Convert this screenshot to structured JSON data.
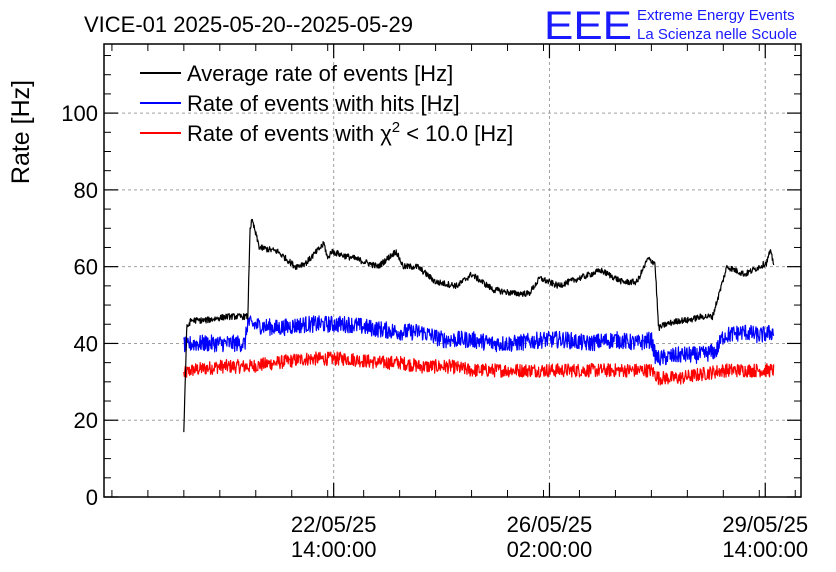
{
  "chart_data": {
    "type": "line",
    "title": "VICE-01 2025-05-20--2025-05-29",
    "ylabel": "Rate [Hz]",
    "xlabel": "",
    "ylim": [
      0,
      118
    ],
    "yticks": [
      0,
      20,
      40,
      60,
      80,
      100
    ],
    "xlim": [
      -1.11,
      8.58
    ],
    "xtick_positions_days": [
      2.083,
      5.083,
      8.083
    ],
    "xticks": [
      {
        "date": "22/05/25",
        "time": "14:00:00"
      },
      {
        "date": "26/05/25",
        "time": "02:00:00"
      },
      {
        "date": "29/05/25",
        "time": "14:00:00"
      }
    ],
    "x_unit": "days since 2025-05-20 12:00",
    "grid": true,
    "legend_position": "top-left",
    "series": [
      {
        "name": "Average rate of events [Hz]",
        "color": "#000000",
        "noise": 0.8,
        "x": [
          0.0,
          0.04,
          0.1,
          0.3,
          0.6,
          0.85,
          0.89,
          0.92,
          0.95,
          1.05,
          1.3,
          1.55,
          1.7,
          1.95,
          2.0,
          2.05,
          2.2,
          2.4,
          2.7,
          2.95,
          3.05,
          3.25,
          3.5,
          3.8,
          4.0,
          4.3,
          4.6,
          4.8,
          4.95,
          5.2,
          5.5,
          5.8,
          6.1,
          6.3,
          6.45,
          6.55,
          6.6,
          6.7,
          6.9,
          7.0,
          7.2,
          7.35,
          7.55,
          7.8,
          8.0,
          8.1,
          8.15,
          8.2
        ],
        "y": [
          17,
          44,
          46,
          46,
          47,
          47,
          47,
          70,
          72,
          65,
          64,
          60,
          61,
          66,
          62,
          64,
          63,
          62,
          60,
          64,
          60,
          60,
          56,
          55,
          58,
          54,
          53,
          53,
          57,
          55,
          57,
          59,
          56,
          56,
          62,
          61,
          44,
          45,
          46,
          46,
          47,
          47,
          60,
          58,
          60,
          61,
          64,
          61
        ]
      },
      {
        "name": "Rate of events with hits [Hz]",
        "color": "#0000ff",
        "noise": 2.2,
        "x": [
          0.0,
          0.04,
          0.1,
          0.5,
          0.85,
          0.89,
          0.92,
          1.3,
          1.7,
          2.0,
          2.3,
          2.6,
          3.0,
          3.3,
          3.6,
          4.0,
          4.3,
          4.6,
          5.0,
          5.3,
          5.6,
          6.0,
          6.3,
          6.5,
          6.55,
          6.6,
          6.9,
          7.2,
          7.4,
          7.5,
          7.8,
          8.0,
          8.2
        ],
        "y": [
          40,
          39,
          40,
          40,
          40,
          46,
          45,
          44,
          45,
          45,
          45,
          44,
          43,
          43,
          41,
          41,
          40,
          40,
          41,
          41,
          40,
          41,
          40,
          41,
          37,
          36,
          37,
          37,
          38,
          42,
          43,
          42,
          43
        ]
      },
      {
        "name": "Rate of events with χ² < 10.0 [Hz]",
        "color": "#ff0000",
        "noise": 1.8,
        "x": [
          0.0,
          0.1,
          0.5,
          0.9,
          1.3,
          1.7,
          2.0,
          2.3,
          2.7,
          3.0,
          3.3,
          3.7,
          4.0,
          4.3,
          4.7,
          5.0,
          5.4,
          5.8,
          6.2,
          6.5,
          6.6,
          6.9,
          7.2,
          7.5,
          7.8,
          8.2
        ],
        "y": [
          32,
          33,
          34,
          34,
          35,
          36,
          36,
          36,
          35,
          35,
          34,
          34,
          33,
          33,
          33,
          33,
          33,
          33,
          33,
          33,
          31,
          31,
          32,
          33,
          33,
          33
        ]
      }
    ],
    "legend": [
      {
        "text": "Average rate of events [Hz]",
        "color": "#000000"
      },
      {
        "text": "Rate of events with hits [Hz]",
        "color": "#0000ff"
      },
      {
        "text": "Rate of events with χ",
        "sup": "2",
        "tail": " < 10.0 [Hz]",
        "color": "#ff0000"
      }
    ]
  },
  "logo": {
    "letters": "EEE",
    "line1": "Extreme Energy Events",
    "line2": "La Scienza nelle Scuole",
    "color": "#1a1aff"
  }
}
